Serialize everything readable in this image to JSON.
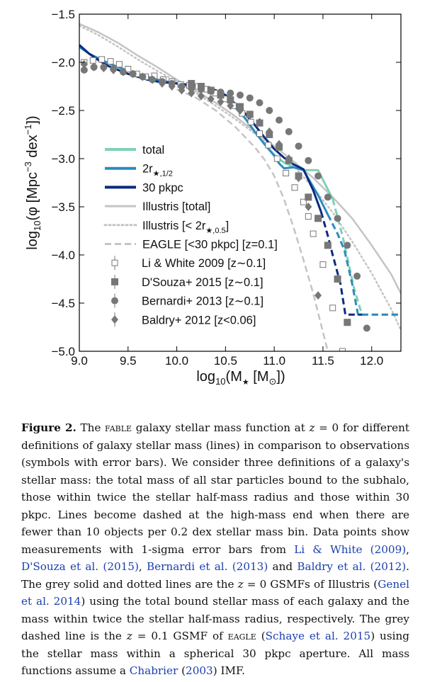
{
  "chart_data": {
    "type": "line",
    "xlabel": "log10(M★ [M⊙])",
    "xlabel_main": "log",
    "xlabel_sub": "10",
    "xlabel_rest": "(M",
    "xlabel_star": "★",
    "xlabel_tail": " [M",
    "xlabel_sun": "⊙",
    "xlabel_end": "])",
    "ylabel_main": "log",
    "ylabel_sub": "10",
    "ylabel_rest": "(φ [Mpc",
    "ylabel_exp1": "−3",
    "ylabel_mid": " dex",
    "ylabel_exp2": "−1",
    "ylabel_end": "])",
    "ylabel": "log10(φ [Mpc^-3 dex^-1])",
    "xlim": [
      9.0,
      12.3
    ],
    "ylim": [
      -5.0,
      -1.5
    ],
    "xticks": [
      9.0,
      9.5,
      10.0,
      10.5,
      11.0,
      11.5,
      12.0
    ],
    "xtick_labels": [
      "9.0",
      "9.5",
      "10.0",
      "10.5",
      "11.0",
      "11.5",
      "12.0"
    ],
    "yticks": [
      -1.5,
      -2.0,
      -2.5,
      -3.0,
      -3.5,
      -4.0,
      -4.5,
      -5.0
    ],
    "ytick_labels": [
      "−1.5",
      "−2.0",
      "−2.5",
      "−3.0",
      "−3.5",
      "−4.0",
      "−4.5",
      "−5.0"
    ],
    "lines": [
      {
        "name": "total",
        "color": "#7fd0b6",
        "width": 3,
        "dash": "solid",
        "x": [
          9.0,
          9.1,
          9.2,
          9.3,
          9.4,
          9.5,
          9.6,
          9.7,
          9.8,
          9.9,
          10.0,
          10.1,
          10.2,
          10.3,
          10.4,
          10.5,
          10.6,
          10.7,
          10.8,
          10.9,
          11.0,
          11.1,
          11.2,
          11.3,
          11.45,
          11.6
        ],
        "y": [
          -1.84,
          -1.91,
          -1.96,
          -2.01,
          -2.05,
          -2.09,
          -2.12,
          -2.15,
          -2.18,
          -2.2,
          -2.22,
          -2.24,
          -2.25,
          -2.27,
          -2.3,
          -2.36,
          -2.45,
          -2.58,
          -2.72,
          -2.85,
          -2.96,
          -3.04,
          -3.09,
          -3.12,
          -3.12,
          -3.42
        ]
      },
      {
        "name": "total (dashed)",
        "color": "#7fd0b6",
        "width": 3,
        "dash": "dashed",
        "x": [
          11.6,
          11.7,
          11.82,
          11.9,
          12.3
        ],
        "y": [
          -3.42,
          -3.8,
          -4.35,
          -4.62,
          -4.62
        ]
      },
      {
        "name": "2r★,1/2",
        "color": "#2b8cbe",
        "width": 3,
        "dash": "solid",
        "x": [
          9.0,
          9.1,
          9.2,
          9.3,
          9.4,
          9.5,
          9.6,
          9.7,
          9.8,
          9.9,
          10.0,
          10.1,
          10.2,
          10.3,
          10.4,
          10.5,
          10.6,
          10.7,
          10.8,
          10.9,
          11.0,
          11.05,
          11.1,
          11.2,
          11.3,
          11.45,
          11.55
        ],
        "y": [
          -1.84,
          -1.91,
          -1.96,
          -2.01,
          -2.05,
          -2.09,
          -2.12,
          -2.15,
          -2.18,
          -2.2,
          -2.22,
          -2.24,
          -2.26,
          -2.28,
          -2.31,
          -2.38,
          -2.47,
          -2.58,
          -2.72,
          -2.85,
          -2.97,
          -3.05,
          -3.1,
          -3.09,
          -3.12,
          -3.38,
          -3.58
        ]
      },
      {
        "name": "2r★,1/2 (dashed)",
        "color": "#2b8cbe",
        "width": 3,
        "dash": "dashed",
        "x": [
          11.55,
          11.65,
          11.72,
          11.8,
          11.86,
          12.3
        ],
        "y": [
          -3.58,
          -3.78,
          -3.95,
          -4.3,
          -4.62,
          -4.62
        ]
      },
      {
        "name": "30 pkpc",
        "color": "#0b2a80",
        "width": 3,
        "dash": "solid",
        "x": [
          9.0,
          9.1,
          9.2,
          9.3,
          9.4,
          9.5,
          9.6,
          9.7,
          9.8,
          9.9,
          10.0,
          10.1,
          10.2,
          10.3,
          10.4,
          10.5,
          10.6,
          10.7,
          10.8,
          10.9,
          11.0,
          11.1,
          11.2,
          11.3,
          11.4,
          11.48
        ],
        "y": [
          -1.82,
          -1.91,
          -1.98,
          -2.04,
          -2.08,
          -2.12,
          -2.15,
          -2.18,
          -2.2,
          -2.21,
          -2.22,
          -2.23,
          -2.24,
          -2.26,
          -2.29,
          -2.34,
          -2.43,
          -2.53,
          -2.65,
          -2.78,
          -2.9,
          -2.99,
          -3.06,
          -3.11,
          -3.33,
          -3.55
        ]
      },
      {
        "name": "30 pkpc (dashed)",
        "color": "#0b2a80",
        "width": 3,
        "dash": "dashed",
        "x": [
          11.48,
          11.55,
          11.6,
          11.68,
          11.73,
          11.9
        ],
        "y": [
          -3.55,
          -3.8,
          -4.0,
          -4.3,
          -4.62,
          -4.62
        ]
      },
      {
        "name": "Illustris [total]",
        "color": "#c4c4c4",
        "width": 2.5,
        "dash": "solid",
        "x": [
          9.0,
          9.2,
          9.4,
          9.6,
          9.8,
          10.0,
          10.2,
          10.4,
          10.6,
          10.8,
          11.0,
          11.2,
          11.4,
          11.6,
          11.8,
          12.0,
          12.2,
          12.3
        ],
        "y": [
          -1.6,
          -1.69,
          -1.8,
          -1.93,
          -2.05,
          -2.18,
          -2.3,
          -2.42,
          -2.56,
          -2.72,
          -2.87,
          -3.03,
          -3.2,
          -3.4,
          -3.62,
          -3.9,
          -4.2,
          -4.4
        ]
      },
      {
        "name": "Illustris [< 2r★,0.5]",
        "color": "#c4c4c4",
        "width": 2.5,
        "dash": "dotted",
        "x": [
          9.0,
          9.2,
          9.4,
          9.6,
          9.8,
          10.0,
          10.2,
          10.4,
          10.6,
          10.8,
          11.0,
          11.2,
          11.4,
          11.6,
          11.8,
          12.0,
          12.2,
          12.3
        ],
        "y": [
          -1.62,
          -1.72,
          -1.84,
          -1.97,
          -2.09,
          -2.2,
          -2.32,
          -2.45,
          -2.59,
          -2.74,
          -2.9,
          -3.08,
          -3.3,
          -3.56,
          -3.86,
          -4.19,
          -4.56,
          -4.78
        ]
      },
      {
        "name": "EAGLE [<30 pkpc] [z=0.1]",
        "color": "#c4c4c4",
        "width": 2.5,
        "dash": "dashed",
        "x": [
          10.0,
          10.2,
          10.4,
          10.6,
          10.8,
          10.9,
          11.0,
          11.1,
          11.2,
          11.3,
          11.4,
          11.5,
          11.55
        ],
        "y": [
          -2.28,
          -2.37,
          -2.5,
          -2.67,
          -2.88,
          -3.01,
          -3.18,
          -3.42,
          -3.72,
          -4.05,
          -4.4,
          -4.8,
          -5.0
        ]
      }
    ],
    "points": [
      {
        "name": "Li & White 2009 [z~0.1]",
        "marker": "open-square",
        "color": "#777777",
        "x": [
          9.05,
          9.14,
          9.23,
          9.32,
          9.41,
          9.5,
          9.59,
          9.68,
          9.77,
          9.86,
          9.95,
          10.04,
          10.13,
          10.22,
          10.31,
          10.4,
          10.49,
          10.58,
          10.67,
          10.76,
          10.85,
          10.94,
          11.03,
          11.12,
          11.21,
          11.3,
          11.35,
          11.4,
          11.5,
          11.6,
          11.7
        ],
        "y": [
          -2.0,
          -1.98,
          -1.97,
          -1.99,
          -2.02,
          -2.07,
          -2.12,
          -2.15,
          -2.14,
          -2.18,
          -2.2,
          -2.23,
          -2.24,
          -2.25,
          -2.28,
          -2.32,
          -2.38,
          -2.45,
          -2.53,
          -2.62,
          -2.74,
          -2.86,
          -3.0,
          -3.15,
          -3.3,
          -3.45,
          -3.6,
          -3.78,
          -4.1,
          -4.55,
          -5.0
        ]
      },
      {
        "name": "D'Souza+ 2015 [z~0.1]",
        "marker": "filled-square",
        "color": "#777777",
        "x": [
          10.15,
          10.25,
          10.35,
          10.45,
          10.55,
          10.65,
          10.75,
          10.85,
          10.95,
          11.05,
          11.15,
          11.25,
          11.35,
          11.45,
          11.55,
          11.65,
          11.75
        ],
        "y": [
          -2.22,
          -2.25,
          -2.29,
          -2.34,
          -2.39,
          -2.46,
          -2.54,
          -2.63,
          -2.75,
          -2.88,
          -3.02,
          -3.18,
          -3.4,
          -3.62,
          -3.9,
          -4.25,
          -4.7
        ]
      },
      {
        "name": "Bernardi+ 2013 [z~0.1]",
        "marker": "circle",
        "color": "#777777",
        "x": [
          9.05,
          9.15,
          9.25,
          9.35,
          9.45,
          9.55,
          9.65,
          9.75,
          9.85,
          9.95,
          10.05,
          10.15,
          10.25,
          10.35,
          10.45,
          10.55,
          10.65,
          10.75,
          10.85,
          10.95,
          11.05,
          11.15,
          11.25,
          11.35,
          11.45,
          11.55,
          11.65,
          11.75,
          11.85,
          11.95
        ],
        "y": [
          -2.08,
          -2.05,
          -2.05,
          -2.07,
          -2.1,
          -2.12,
          -2.15,
          -2.18,
          -2.2,
          -2.22,
          -2.25,
          -2.27,
          -2.28,
          -2.3,
          -2.31,
          -2.32,
          -2.34,
          -2.37,
          -2.42,
          -2.5,
          -2.6,
          -2.72,
          -2.87,
          -3.02,
          -3.18,
          -3.4,
          -3.62,
          -3.9,
          -4.22,
          -4.76
        ]
      },
      {
        "name": "Baldry+ 2012 [z<0.06]",
        "marker": "diamond",
        "color": "#777777",
        "x": [
          9.05,
          9.15,
          9.25,
          9.35,
          9.45,
          9.55,
          9.65,
          9.75,
          9.85,
          9.95,
          10.05,
          10.15,
          10.25,
          10.35,
          10.45,
          10.55,
          10.65,
          10.75,
          10.85,
          10.95,
          11.05,
          11.15,
          11.25,
          11.35,
          11.45
        ],
        "y": [
          -2.02,
          -2.05,
          -2.06,
          -2.08,
          -2.1,
          -2.12,
          -2.15,
          -2.18,
          -2.22,
          -2.25,
          -2.29,
          -2.32,
          -2.35,
          -2.38,
          -2.41,
          -2.45,
          -2.5,
          -2.55,
          -2.62,
          -2.72,
          -2.85,
          -3.0,
          -3.2,
          -3.5,
          -4.42
        ]
      }
    ],
    "legend": [
      {
        "label": "total",
        "kind": "line",
        "color": "#7fd0b6",
        "dash": "solid",
        "width": 4
      },
      {
        "label": "2r",
        "sub": "★,1/2",
        "kind": "line",
        "color": "#2b8cbe",
        "dash": "solid",
        "width": 4
      },
      {
        "label": "30 pkpc",
        "kind": "line",
        "color": "#0b2a80",
        "dash": "solid",
        "width": 4
      },
      {
        "label": "Illustris [total]",
        "kind": "line",
        "color": "#c4c4c4",
        "dash": "solid",
        "width": 3
      },
      {
        "label": "Illustris [< 2r",
        "sub": "★,0.5",
        "tail": "]",
        "kind": "line",
        "color": "#c4c4c4",
        "dash": "dotted",
        "width": 3
      },
      {
        "label": "EAGLE [<30 pkpc] [z=0.1]",
        "kind": "line",
        "color": "#c4c4c4",
        "dash": "dashed",
        "width": 3
      },
      {
        "label": "Li & White 2009 [z∼0.1]",
        "kind": "open-square",
        "color": "#777777"
      },
      {
        "label": "D'Souza+ 2015 [z∼0.1]",
        "kind": "filled-square",
        "color": "#777777"
      },
      {
        "label": "Bernardi+ 2013 [z∼0.1]",
        "kind": "circle",
        "color": "#777777"
      },
      {
        "label": "Baldry+ 2012 [z<0.06]",
        "kind": "diamond",
        "color": "#777777"
      }
    ],
    "legend_position": "lower-left"
  },
  "caption": {
    "label": "Figure 2.",
    "t1": " The ",
    "fable": "fable",
    "t2": " galaxy stellar mass function at ",
    "m1": "z",
    "t3": " = 0 for different definitions of galaxy stellar mass (lines) in comparison to observations (symbols with error bars). We consider three definitions of a galaxy's stellar mass: the total mass of all star particles bound to the subhalo, those within twice the stellar half-mass radius and those within 30 pkpc. Lines become dashed at the high-mass end when there are fewer than 10 objects per 0.2 dex stellar mass bin. Data points show measurements with 1-sigma error bars from ",
    "r1": "Li & White (2009)",
    "t4": ", ",
    "r2": "D'Souza et al. (2015)",
    "t5": ", ",
    "r3": "Bernardi et al. (2013)",
    "t6": " and ",
    "r4": "Baldry et al. (2012)",
    "t7": ". The grey solid and dotted lines are the ",
    "m2": "z",
    "t8": " = 0 GSMFs of Illustris (",
    "r5": "Genel et al. 2014",
    "t9": ") using the total bound stellar mass of each galaxy and the mass within twice the stellar half-mass radius, respectively. The grey dashed line is the ",
    "m3": "z",
    "t10": " = 0.1 GSMF of ",
    "eagle": "eagle",
    "t11": " (",
    "r6": "Schaye et al. 2015",
    "t12": ") using the stellar mass within a spherical 30 pkpc aperture. All mass functions assume a ",
    "r7": "Chabrier",
    "t13": " (",
    "r8": "2003",
    "t14": ") IMF."
  }
}
